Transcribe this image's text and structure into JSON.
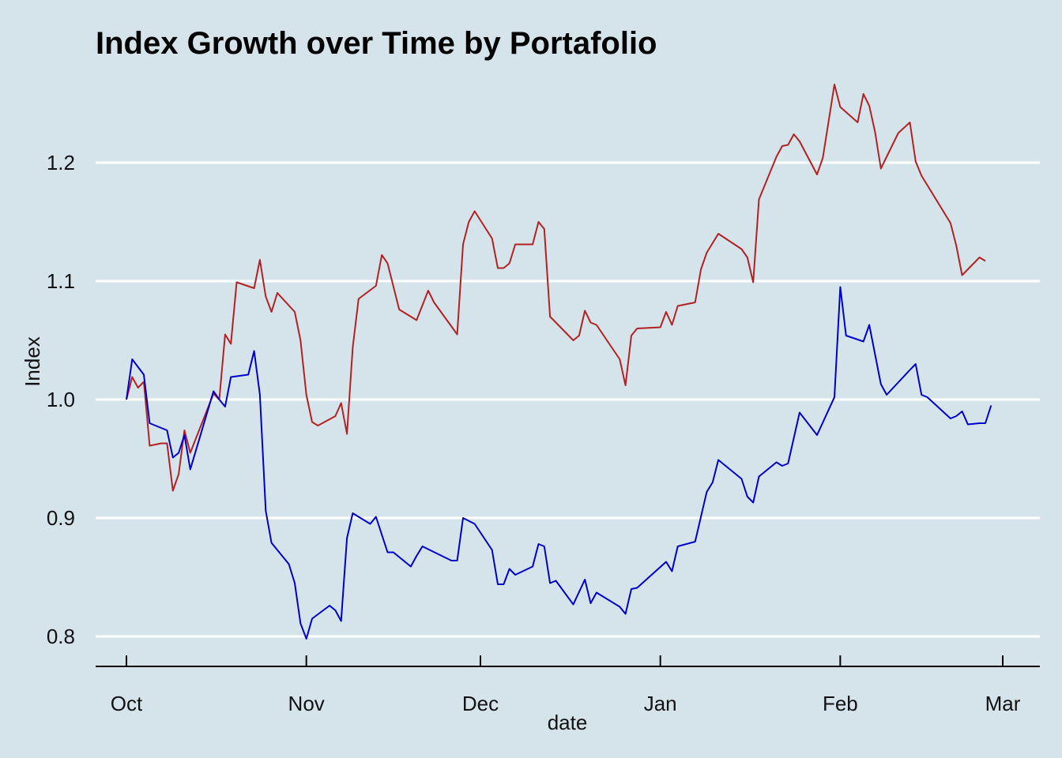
{
  "chart_data": {
    "type": "line",
    "title": "Index Growth over Time by Portafolio",
    "xlabel": "date",
    "ylabel": "Index",
    "ylim": [
      0.775,
      1.27
    ],
    "y_ticks": [
      0.8,
      0.9,
      1.0,
      1.1,
      1.2
    ],
    "y_tick_labels": [
      "0.8",
      "0.9",
      "1.0",
      "1.1",
      "1.2"
    ],
    "x_ticks": [
      "Oct",
      "Nov",
      "Dec",
      "Jan",
      "Feb",
      "Mar"
    ],
    "grid": "horizontal",
    "legend": "none",
    "colors": {
      "background": "#d5e4eb",
      "grid": "#ffffff",
      "series1": "#b22222",
      "series2": "#0000cd"
    },
    "series": [
      {
        "color": "#b22222",
        "points": [
          [
            "2020-10-01",
            1.0
          ],
          [
            "2020-10-02",
            1.019
          ],
          [
            "2020-10-03",
            1.01
          ],
          [
            "2020-10-04",
            1.015
          ],
          [
            "2020-10-05",
            0.961
          ],
          [
            "2020-10-07",
            0.963
          ],
          [
            "2020-10-08",
            0.963
          ],
          [
            "2020-10-09",
            0.923
          ],
          [
            "2020-10-10",
            0.937
          ],
          [
            "2020-10-11",
            0.974
          ],
          [
            "2020-10-12",
            0.955
          ],
          [
            "2020-10-16",
            1.005
          ],
          [
            "2020-10-17",
            1.0
          ],
          [
            "2020-10-18",
            1.055
          ],
          [
            "2020-10-19",
            1.047
          ],
          [
            "2020-10-20",
            1.099
          ],
          [
            "2020-10-23",
            1.094
          ],
          [
            "2020-10-24",
            1.118
          ],
          [
            "2020-10-25",
            1.087
          ],
          [
            "2020-10-26",
            1.074
          ],
          [
            "2020-10-27",
            1.09
          ],
          [
            "2020-10-30",
            1.074
          ],
          [
            "2020-10-31",
            1.05
          ],
          [
            "2020-11-01",
            1.004
          ],
          [
            "2020-11-02",
            0.981
          ],
          [
            "2020-11-03",
            0.978
          ],
          [
            "2020-11-06",
            0.986
          ],
          [
            "2020-11-07",
            0.997
          ],
          [
            "2020-11-08",
            0.971
          ],
          [
            "2020-11-09",
            1.044
          ],
          [
            "2020-11-10",
            1.085
          ],
          [
            "2020-11-13",
            1.096
          ],
          [
            "2020-11-14",
            1.122
          ],
          [
            "2020-11-15",
            1.115
          ],
          [
            "2020-11-17",
            1.076
          ],
          [
            "2020-11-20",
            1.067
          ],
          [
            "2020-11-22",
            1.092
          ],
          [
            "2020-11-23",
            1.082
          ],
          [
            "2020-11-27",
            1.055
          ],
          [
            "2020-11-28",
            1.131
          ],
          [
            "2020-11-29",
            1.15
          ],
          [
            "2020-11-30",
            1.159
          ],
          [
            "2020-12-03",
            1.136
          ],
          [
            "2020-12-04",
            1.111
          ],
          [
            "2020-12-05",
            1.111
          ],
          [
            "2020-12-06",
            1.115
          ],
          [
            "2020-12-07",
            1.131
          ],
          [
            "2020-12-10",
            1.131
          ],
          [
            "2020-12-11",
            1.15
          ],
          [
            "2020-12-12",
            1.144
          ],
          [
            "2020-12-13",
            1.07
          ],
          [
            "2020-12-14",
            1.065
          ],
          [
            "2020-12-17",
            1.05
          ],
          [
            "2020-12-18",
            1.054
          ],
          [
            "2020-12-19",
            1.075
          ],
          [
            "2020-12-20",
            1.065
          ],
          [
            "2020-12-21",
            1.063
          ],
          [
            "2020-12-25",
            1.034
          ],
          [
            "2020-12-26",
            1.012
          ],
          [
            "2020-12-27",
            1.054
          ],
          [
            "2020-12-28",
            1.06
          ],
          [
            "2021-01-01",
            1.061
          ],
          [
            "2021-01-02",
            1.074
          ],
          [
            "2021-01-03",
            1.063
          ],
          [
            "2021-01-04",
            1.079
          ],
          [
            "2021-01-07",
            1.082
          ],
          [
            "2021-01-08",
            1.11
          ],
          [
            "2021-01-09",
            1.124
          ],
          [
            "2021-01-11",
            1.14
          ],
          [
            "2021-01-15",
            1.127
          ],
          [
            "2021-01-16",
            1.12
          ],
          [
            "2021-01-17",
            1.099
          ],
          [
            "2021-01-18",
            1.169
          ],
          [
            "2021-01-21",
            1.205
          ],
          [
            "2021-01-22",
            1.214
          ],
          [
            "2021-01-23",
            1.215
          ],
          [
            "2021-01-24",
            1.224
          ],
          [
            "2021-01-25",
            1.218
          ],
          [
            "2021-01-28",
            1.19
          ],
          [
            "2021-01-29",
            1.204
          ],
          [
            "2021-01-31",
            1.266
          ],
          [
            "2021-02-01",
            1.247
          ],
          [
            "2021-02-04",
            1.234
          ],
          [
            "2021-02-05",
            1.258
          ],
          [
            "2021-02-06",
            1.248
          ],
          [
            "2021-02-07",
            1.226
          ],
          [
            "2021-02-08",
            1.195
          ],
          [
            "2021-02-11",
            1.225
          ],
          [
            "2021-02-13",
            1.234
          ],
          [
            "2021-02-14",
            1.201
          ],
          [
            "2021-02-15",
            1.189
          ],
          [
            "2021-02-20",
            1.149
          ],
          [
            "2021-02-21",
            1.13
          ],
          [
            "2021-02-22",
            1.105
          ],
          [
            "2021-02-25",
            1.12
          ],
          [
            "2021-02-26",
            1.117
          ]
        ]
      },
      {
        "color": "#0000cd",
        "points": [
          [
            "2020-10-01",
            1.0
          ],
          [
            "2020-10-02",
            1.034
          ],
          [
            "2020-10-04",
            1.021
          ],
          [
            "2020-10-05",
            0.98
          ],
          [
            "2020-10-08",
            0.974
          ],
          [
            "2020-10-09",
            0.951
          ],
          [
            "2020-10-10",
            0.955
          ],
          [
            "2020-10-11",
            0.97
          ],
          [
            "2020-10-12",
            0.941
          ],
          [
            "2020-10-16",
            1.007
          ],
          [
            "2020-10-17",
            1.0
          ],
          [
            "2020-10-18",
            0.994
          ],
          [
            "2020-10-19",
            1.019
          ],
          [
            "2020-10-22",
            1.021
          ],
          [
            "2020-10-23",
            1.041
          ],
          [
            "2020-10-24",
            1.004
          ],
          [
            "2020-10-25",
            0.906
          ],
          [
            "2020-10-26",
            0.879
          ],
          [
            "2020-10-29",
            0.861
          ],
          [
            "2020-10-30",
            0.845
          ],
          [
            "2020-10-31",
            0.811
          ],
          [
            "2020-11-01",
            0.798
          ],
          [
            "2020-11-02",
            0.815
          ],
          [
            "2020-11-05",
            0.826
          ],
          [
            "2020-11-06",
            0.822
          ],
          [
            "2020-11-07",
            0.813
          ],
          [
            "2020-11-08",
            0.883
          ],
          [
            "2020-11-09",
            0.904
          ],
          [
            "2020-11-12",
            0.895
          ],
          [
            "2020-11-13",
            0.901
          ],
          [
            "2020-11-15",
            0.871
          ],
          [
            "2020-11-16",
            0.871
          ],
          [
            "2020-11-19",
            0.859
          ],
          [
            "2020-11-20",
            0.868
          ],
          [
            "2020-11-21",
            0.876
          ],
          [
            "2020-11-26",
            0.864
          ],
          [
            "2020-11-27",
            0.864
          ],
          [
            "2020-11-28",
            0.9
          ],
          [
            "2020-11-30",
            0.895
          ],
          [
            "2020-12-03",
            0.873
          ],
          [
            "2020-12-04",
            0.844
          ],
          [
            "2020-12-05",
            0.844
          ],
          [
            "2020-12-06",
            0.857
          ],
          [
            "2020-12-07",
            0.852
          ],
          [
            "2020-12-10",
            0.859
          ],
          [
            "2020-12-11",
            0.878
          ],
          [
            "2020-12-12",
            0.876
          ],
          [
            "2020-12-13",
            0.845
          ],
          [
            "2020-12-14",
            0.847
          ],
          [
            "2020-12-17",
            0.827
          ],
          [
            "2020-12-19",
            0.848
          ],
          [
            "2020-12-20",
            0.828
          ],
          [
            "2020-12-21",
            0.837
          ],
          [
            "2020-12-25",
            0.825
          ],
          [
            "2020-12-26",
            0.819
          ],
          [
            "2020-12-27",
            0.84
          ],
          [
            "2020-12-28",
            0.841
          ],
          [
            "2021-01-02",
            0.863
          ],
          [
            "2021-01-03",
            0.855
          ],
          [
            "2021-01-04",
            0.876
          ],
          [
            "2021-01-07",
            0.88
          ],
          [
            "2021-01-09",
            0.922
          ],
          [
            "2021-01-10",
            0.93
          ],
          [
            "2021-01-11",
            0.949
          ],
          [
            "2021-01-15",
            0.933
          ],
          [
            "2021-01-16",
            0.918
          ],
          [
            "2021-01-17",
            0.913
          ],
          [
            "2021-01-18",
            0.935
          ],
          [
            "2021-01-21",
            0.947
          ],
          [
            "2021-01-22",
            0.944
          ],
          [
            "2021-01-23",
            0.946
          ],
          [
            "2021-01-25",
            0.989
          ],
          [
            "2021-01-28",
            0.97
          ],
          [
            "2021-01-31",
            1.002
          ],
          [
            "2021-02-01",
            1.095
          ],
          [
            "2021-02-02",
            1.054
          ],
          [
            "2021-02-05",
            1.049
          ],
          [
            "2021-02-06",
            1.063
          ],
          [
            "2021-02-08",
            1.013
          ],
          [
            "2021-02-09",
            1.004
          ],
          [
            "2021-02-13",
            1.025
          ],
          [
            "2021-02-14",
            1.03
          ],
          [
            "2021-02-15",
            1.004
          ],
          [
            "2021-02-16",
            1.002
          ],
          [
            "2021-02-20",
            0.984
          ],
          [
            "2021-02-21",
            0.986
          ],
          [
            "2021-02-22",
            0.99
          ],
          [
            "2021-02-23",
            0.979
          ],
          [
            "2021-02-25",
            0.98
          ],
          [
            "2021-02-26",
            0.98
          ],
          [
            "2021-02-27",
            0.995
          ]
        ]
      }
    ]
  }
}
